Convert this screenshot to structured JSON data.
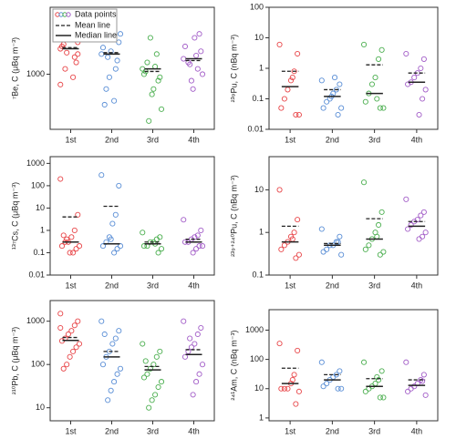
{
  "chart_data": [
    {
      "type": "strip",
      "ylabel": "⁷Be, C (μBq m⁻³)",
      "categories": [
        "1st",
        "2nd",
        "3rd",
        "4th"
      ],
      "colors": [
        "#e8474a",
        "#5b8fd6",
        "#4caf50",
        "#a35ec8"
      ],
      "log": true,
      "ylim": [
        150,
        10000
      ],
      "yticks": [
        1000
      ],
      "points": [
        [
          2400,
          3000,
          1800,
          5000,
          8000,
          1200,
          2600,
          3500,
          1500,
          900,
          4200,
          2100,
          2800,
          700,
          2000
        ],
        [
          2000,
          3000,
          1200,
          5000,
          900,
          600,
          2500,
          4000,
          1600,
          400,
          2200,
          1800,
          350
        ],
        [
          1200,
          900,
          2000,
          600,
          3500,
          1500,
          1000,
          300,
          800,
          1300,
          500,
          200,
          1100
        ],
        [
          1700,
          2200,
          1200,
          3500,
          800,
          1500,
          2600,
          1000,
          4000,
          1900,
          600,
          1400
        ]
      ],
      "means": [
        2500,
        2100,
        1100,
        1600
      ],
      "medians": [
        2400,
        2000,
        1200,
        1700
      ],
      "legend": {
        "points": "Data points",
        "mean": "Mean line",
        "median": "Median line"
      }
    },
    {
      "type": "strip",
      "ylabel": "²³⁹Pu, C (nBq m⁻³)",
      "categories": [
        "1st",
        "2nd",
        "3rd",
        "4th"
      ],
      "colors": [
        "#e8474a",
        "#5b8fd6",
        "#4caf50",
        "#a35ec8"
      ],
      "log": true,
      "ylim": [
        0.01,
        100
      ],
      "yticks": [
        0.01,
        0.1,
        1,
        10,
        100
      ],
      "points": [
        [
          6,
          3,
          0.8,
          0.4,
          0.2,
          0.1,
          0.05,
          0.03,
          0.03,
          0.5
        ],
        [
          0.4,
          0.3,
          0.2,
          0.15,
          0.1,
          0.08,
          0.05,
          0.05,
          0.03,
          0.5,
          0.12
        ],
        [
          6,
          4,
          2,
          0.5,
          0.3,
          0.15,
          0.08,
          0.05,
          0.05,
          0.1
        ],
        [
          3,
          2,
          1,
          0.7,
          0.5,
          0.35,
          0.3,
          0.2,
          0.1,
          0.03
        ]
      ],
      "means": [
        0.8,
        0.2,
        1.3,
        0.7
      ],
      "medians": [
        0.25,
        0.12,
        0.15,
        0.35
      ]
    },
    {
      "type": "strip",
      "ylabel": "¹³⁷Cs, C (μBq m⁻³)",
      "categories": [
        "1st",
        "2nd",
        "3rd",
        "4th"
      ],
      "colors": [
        "#e8474a",
        "#5b8fd6",
        "#4caf50",
        "#a35ec8"
      ],
      "log": true,
      "ylim": [
        0.01,
        2000
      ],
      "yticks": [
        0.01,
        0.1,
        1,
        10,
        100,
        1000
      ],
      "points": [
        [
          200,
          5,
          1,
          0.5,
          0.3,
          0.3,
          0.2,
          0.2,
          0.15,
          0.1,
          0.1,
          0.4,
          0.6
        ],
        [
          300,
          100,
          5,
          2,
          0.5,
          0.3,
          0.2,
          0.2,
          0.15,
          0.1,
          0.4
        ],
        [
          0.8,
          0.5,
          0.4,
          0.3,
          0.3,
          0.2,
          0.2,
          0.15,
          0.1,
          0.25
        ],
        [
          3,
          1,
          0.6,
          0.5,
          0.4,
          0.3,
          0.3,
          0.2,
          0.2,
          0.15,
          0.1
        ]
      ],
      "means": [
        4,
        12,
        0.3,
        0.4
      ],
      "medians": [
        0.3,
        0.25,
        0.25,
        0.3
      ]
    },
    {
      "type": "strip",
      "ylabel": "²³⁹⁺²⁴⁰Pu, C (nBq m⁻³)",
      "categories": [
        "1st",
        "2nd",
        "3rd",
        "4th"
      ],
      "colors": [
        "#e8474a",
        "#5b8fd6",
        "#4caf50",
        "#a35ec8"
      ],
      "log": true,
      "ylim": [
        0.1,
        60
      ],
      "yticks": [
        0.1,
        1,
        10
      ],
      "points": [
        [
          10,
          2,
          1,
          0.8,
          0.6,
          0.5,
          0.4,
          0.3,
          0.25,
          0.7
        ],
        [
          1.2,
          0.8,
          0.6,
          0.5,
          0.5,
          0.4,
          0.35,
          0.3,
          0.6
        ],
        [
          15,
          3,
          1.5,
          1,
          0.7,
          0.5,
          0.4,
          0.35,
          0.3,
          0.8
        ],
        [
          6,
          3,
          2.5,
          2,
          1.8,
          1.5,
          1.2,
          1,
          0.8,
          0.7
        ]
      ],
      "means": [
        1.4,
        0.55,
        2.1,
        1.8
      ],
      "medians": [
        0.6,
        0.5,
        0.7,
        1.4
      ]
    },
    {
      "type": "strip",
      "ylabel": "²¹⁰Pb, C (μBq m⁻³)",
      "categories": [
        "1st",
        "2nd",
        "3rd",
        "4th"
      ],
      "colors": [
        "#e8474a",
        "#5b8fd6",
        "#4caf50",
        "#a35ec8"
      ],
      "log": true,
      "ylim": [
        5,
        3000
      ],
      "yticks": [
        10,
        100,
        1000
      ],
      "points": [
        [
          1500,
          1000,
          800,
          600,
          500,
          400,
          350,
          300,
          250,
          200,
          150,
          100,
          80,
          700
        ],
        [
          1000,
          600,
          400,
          300,
          200,
          150,
          100,
          80,
          60,
          40,
          25,
          15,
          500
        ],
        [
          300,
          200,
          150,
          100,
          80,
          60,
          50,
          40,
          30,
          20,
          15,
          10,
          120
        ],
        [
          1000,
          700,
          500,
          300,
          250,
          200,
          150,
          100,
          60,
          40,
          20,
          400
        ]
      ],
      "means": [
        420,
        200,
        90,
        220
      ],
      "medians": [
        360,
        150,
        75,
        170
      ]
    },
    {
      "type": "strip",
      "ylabel": "²⁴¹Am, C (nBq m⁻³)",
      "categories": [
        "1st",
        "2nd",
        "3rd",
        "4th"
      ],
      "colors": [
        "#e8474a",
        "#5b8fd6",
        "#4caf50",
        "#a35ec8"
      ],
      "log": true,
      "ylim": [
        0.8,
        5000
      ],
      "yticks": [
        1,
        10,
        100,
        1000
      ],
      "points": [
        [
          350,
          200,
          30,
          15,
          10,
          10,
          10,
          8,
          3,
          20
        ],
        [
          80,
          40,
          30,
          25,
          20,
          15,
          12,
          10,
          10
        ],
        [
          80,
          40,
          20,
          15,
          12,
          10,
          8,
          5,
          5,
          25
        ],
        [
          80,
          30,
          20,
          15,
          12,
          10,
          8,
          6,
          18
        ]
      ],
      "means": [
        50,
        30,
        22,
        20
      ],
      "medians": [
        15,
        20,
        12,
        13
      ]
    }
  ]
}
